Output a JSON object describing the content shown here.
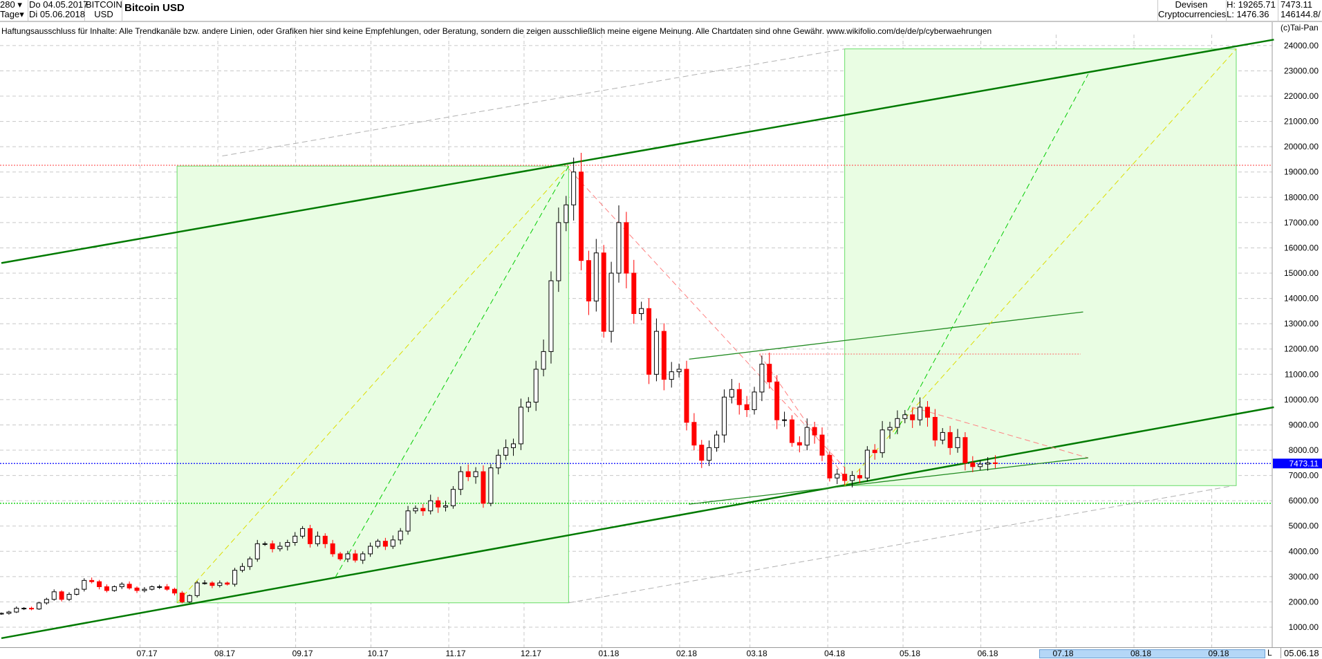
{
  "header": {
    "period_count": "280",
    "period_unit": "Tage",
    "date_from": "Do 04.05.2017",
    "date_to": "Di 05.06.2018",
    "symbol_line1": "BITCOIN",
    "symbol_line2": "USD",
    "title": "Bitcoin USD",
    "category_line1": "Devisen",
    "category_line2": "Cryptocurrencies",
    "high": "H: 19265.71",
    "low": "L: 1476.36",
    "last": "7473.11",
    "volume": "146144.8/",
    "copyright": "(c)Tai-Pan"
  },
  "disclaimer": "Haftungsausschluss für Inhalte: Alle Trendkanäle bzw. andere Linien, oder Grafiken hier sind keine Empfehlungen, oder Beratung, sondern die zeigen ausschließlich meine eigene Meinung. Alle Chartdaten sind ohne Gewähr.  www.wikifolio.com/de/de/p/cyberwaehrungen",
  "footer": {
    "l_label": "L",
    "last_date": "05.06.18"
  },
  "chart_data": {
    "type": "candlestick",
    "title": "Bitcoin USD",
    "start_date": "2017-05-04",
    "step_days": 3,
    "closes": [
      1550,
      1600,
      1750,
      1750,
      1720,
      1960,
      2100,
      2400,
      2100,
      2300,
      2500,
      2850,
      2800,
      2600,
      2450,
      2600,
      2700,
      2550,
      2450,
      2500,
      2600,
      2600,
      2500,
      2350,
      2000,
      2250,
      2750,
      2750,
      2650,
      2750,
      2700,
      3250,
      3400,
      3700,
      4300,
      4300,
      4100,
      4200,
      4350,
      4600,
      4900,
      4300,
      4600,
      4300,
      3900,
      3700,
      3900,
      3650,
      3900,
      4200,
      4400,
      4200,
      4450,
      4800,
      5600,
      5700,
      5600,
      6000,
      5750,
      5800,
      6450,
      7150,
      6950,
      7150,
      5900,
      7300,
      7800,
      8100,
      8250,
      9700,
      9900,
      11200,
      11900,
      14700,
      17000,
      17700,
      19000,
      15500,
      13900,
      15800,
      12700,
      15000,
      17000,
      15000,
      13400,
      13600,
      11000,
      12700,
      10800,
      11100,
      11200,
      9100,
      8200,
      7600,
      8100,
      8600,
      10100,
      10400,
      9800,
      9600,
      10300,
      11400,
      10700,
      9200,
      9200,
      8300,
      8200,
      8900,
      8600,
      7800,
      6900,
      7050,
      6800,
      7000,
      6900,
      8000,
      7900,
      8800,
      8900,
      9250,
      9400,
      9200,
      9700,
      9300,
      8400,
      8700,
      8100,
      8500,
      7500,
      7350,
      7450,
      7500,
      7470
    ],
    "ylim": [
      0,
      25000
    ],
    "y_ticks": [
      "1000.00",
      "2000.00",
      "3000.00",
      "4000.00",
      "5000.00",
      "6000.00",
      "7000.00",
      "8000.00",
      "9000.00",
      "10000.00",
      "11000.00",
      "12000.00",
      "13000.00",
      "14000.00",
      "15000.00",
      "16000.00",
      "17000.00",
      "18000.00",
      "19000.00",
      "20000.00",
      "21000.00",
      "22000.00",
      "23000.00",
      "24000.00"
    ],
    "x_ticks": [
      {
        "label": "07.17",
        "date": "2017-07-01"
      },
      {
        "label": "08.17",
        "date": "2017-08-01"
      },
      {
        "label": "09.17",
        "date": "2017-09-01"
      },
      {
        "label": "10.17",
        "date": "2017-10-01"
      },
      {
        "label": "11.17",
        "date": "2017-11-01"
      },
      {
        "label": "12.17",
        "date": "2017-12-01"
      },
      {
        "label": "01.18",
        "date": "2018-01-01"
      },
      {
        "label": "02.18",
        "date": "2018-02-01"
      },
      {
        "label": "03.18",
        "date": "2018-03-01"
      },
      {
        "label": "04.18",
        "date": "2018-04-01"
      },
      {
        "label": "05.18",
        "date": "2018-05-01"
      },
      {
        "label": "06.18",
        "date": "2018-06-01"
      },
      {
        "label": "07.18",
        "date": "2018-07-01"
      },
      {
        "label": "08.18",
        "date": "2018-08-01"
      },
      {
        "label": "09.18",
        "date": "2018-09-01"
      }
    ],
    "grid": true,
    "last_price": {
      "value": 7473.11,
      "label": "7473.11",
      "color": "#0000ff"
    },
    "horizontal_lines": [
      {
        "price": 19265.71,
        "color": "#ff6060"
      },
      {
        "price": 7473.11,
        "color": "#0000ff"
      },
      {
        "price": 5900,
        "color": "#00cc00"
      }
    ],
    "colors": {
      "up": "#000000",
      "down": "#ff0000",
      "channel": "#007a00",
      "box_fill": "#e9fde3",
      "box_stroke": "#66dd66"
    },
    "drawings": [
      {
        "kind": "line",
        "from": [
          "2017-05-04",
          15400
        ],
        "to": [
          "2018-09-23",
          24235
        ],
        "color": "#007a00",
        "width": 2.5
      },
      {
        "kind": "line",
        "from": [
          "2017-05-04",
          564
        ],
        "to": [
          "2018-09-23",
          9699
        ],
        "color": "#007a00",
        "width": 2.5
      },
      {
        "kind": "dash",
        "from": [
          "2017-07-31",
          19634
        ],
        "to": [
          "2018-04-05",
          23868
        ],
        "color": "#b0b0b0"
      },
      {
        "kind": "dash",
        "from": [
          "2017-12-16",
          1964
        ],
        "to": [
          "2018-09-07",
          6598
        ],
        "color": "#b0b0b0"
      },
      {
        "kind": "box",
        "from": [
          "2017-07-13",
          19234
        ],
        "to": [
          "2017-12-16",
          1964
        ]
      },
      {
        "kind": "box",
        "from": [
          "2018-04-05",
          23868
        ],
        "to": [
          "2018-09-08",
          6598
        ]
      },
      {
        "kind": "hdot",
        "from": [
          "2018-03-02",
          11800
        ],
        "to": [
          "2018-07-08",
          11800
        ],
        "color": "#ff6060"
      },
      {
        "kind": "dash",
        "from": [
          "2017-12-16",
          19134
        ],
        "to": [
          "2018-04-05",
          7300
        ],
        "color": "#ff8080"
      },
      {
        "kind": "dash",
        "from": [
          "2018-03-02",
          11800
        ],
        "to": [
          "2018-04-05",
          6900
        ],
        "color": "#ff8080"
      },
      {
        "kind": "dash",
        "from": [
          "2018-05-02",
          9699
        ],
        "to": [
          "2018-07-11",
          7698
        ],
        "color": "#ff8080"
      },
      {
        "kind": "line",
        "from": [
          "2018-02-02",
          11600
        ],
        "to": [
          "2018-07-09",
          13466
        ],
        "color": "#228b22",
        "width": 1.3
      },
      {
        "kind": "line",
        "from": [
          "2018-02-02",
          5865
        ],
        "to": [
          "2018-07-11",
          7698
        ],
        "color": "#228b22",
        "width": 1.3
      },
      {
        "kind": "dash",
        "from": [
          "2017-07-13",
          1964
        ],
        "to": [
          "2017-12-16",
          19234
        ],
        "color": "#dddd00"
      },
      {
        "kind": "dash",
        "from": [
          "2018-04-05",
          6598
        ],
        "to": [
          "2018-09-08",
          23868
        ],
        "color": "#dddd00"
      },
      {
        "kind": "dash",
        "from": [
          "2017-09-14",
          2964
        ],
        "to": [
          "2017-12-16",
          19234
        ],
        "color": "#00cc00"
      },
      {
        "kind": "dash",
        "from": [
          "2018-04-25",
          8632
        ],
        "to": [
          "2018-07-11",
          22868
        ],
        "color": "#00cc00"
      }
    ]
  }
}
